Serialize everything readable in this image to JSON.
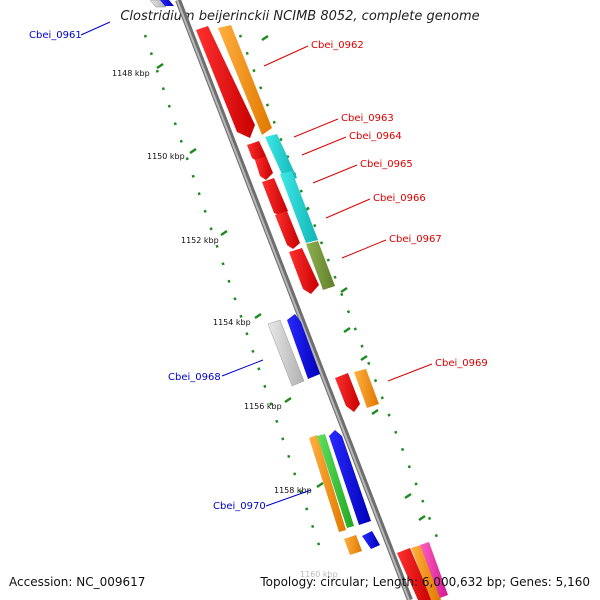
{
  "title": "Clostridium beijerinckii NCIMB 8052, complete genome",
  "footer": {
    "accession_label": "Accession:",
    "accession": "NC_009617",
    "topology_label": "Topology:",
    "topology": "circular",
    "length_label": "Length:",
    "length": "6,000,632 bp",
    "genes_label": "Genes:",
    "genes": "5,160"
  },
  "scale": {
    "ticks": [
      "1148 kbp",
      "1150 kbp",
      "1152 kbp",
      "1154 kbp",
      "1156 kbp",
      "1158 kbp"
    ],
    "faded_tick": "1160 kbp"
  },
  "labels": {
    "left": [
      "Cbei_0961",
      "Cbei_0968",
      "Cbei_0970"
    ],
    "right": [
      "Cbei_0962",
      "Cbei_0963",
      "Cbei_0964",
      "Cbei_0965",
      "Cbei_0966",
      "Cbei_0967",
      "Cbei_0969"
    ]
  },
  "colors": {
    "left_label": "#0000cc",
    "right_label": "#dd0000",
    "axis": "#8a8a8a",
    "tick": "#1f8a1f"
  }
}
